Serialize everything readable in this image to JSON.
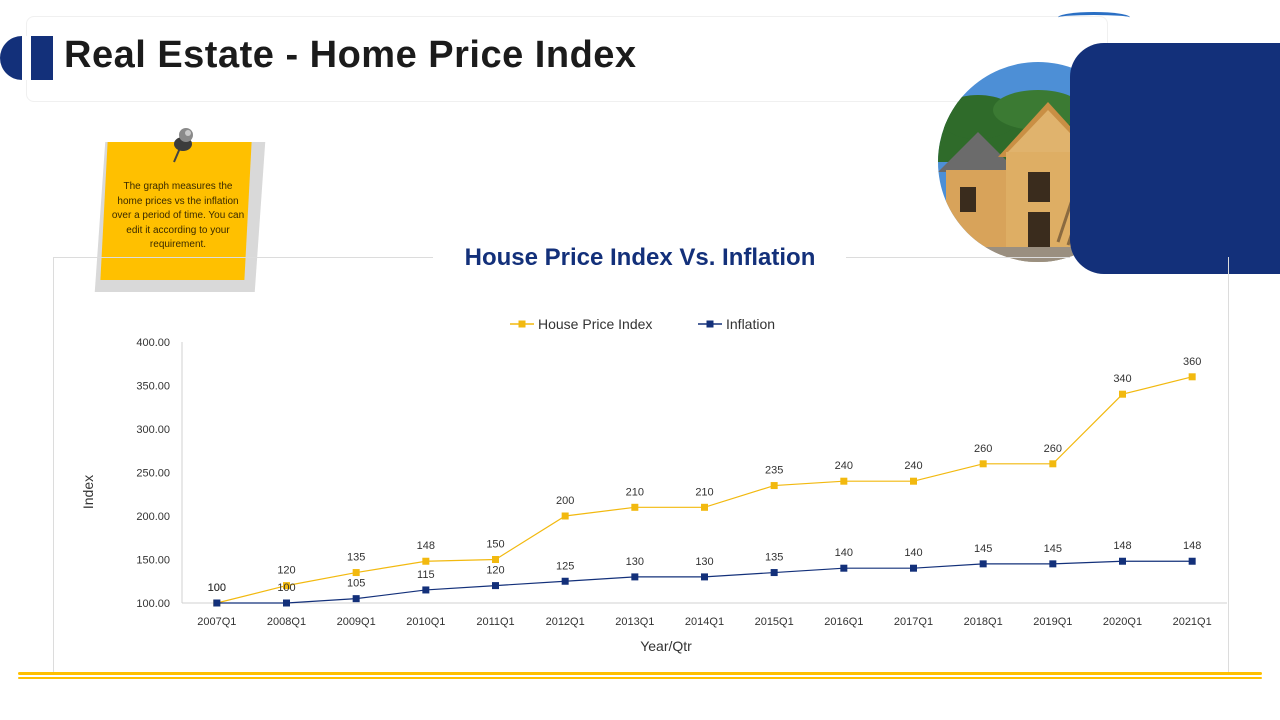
{
  "header": {
    "title": "Real Estate - Home Price Index"
  },
  "note": {
    "text": "The graph measures the home prices vs the inflation over a period of time. You can edit it according to your requirement."
  },
  "colors": {
    "navy": "#13307a",
    "accent": "#ffc000",
    "hpi_series": "#f2b90f",
    "inflation_series": "#13307a"
  },
  "chart_data": {
    "type": "line",
    "title": "House Price Index Vs. Inflation",
    "xlabel": "Year/Qtr",
    "ylabel": "Index",
    "categories": [
      "2007Q1",
      "2008Q1",
      "2009Q1",
      "2010Q1",
      "2011Q1",
      "2012Q1",
      "2013Q1",
      "2014Q1",
      "2015Q1",
      "2016Q1",
      "2017Q1",
      "2018Q1",
      "2019Q1",
      "2020Q1",
      "2021Q1"
    ],
    "ylim": [
      100,
      400
    ],
    "yticks": [
      "100.00",
      "150.00",
      "200.00",
      "250.00",
      "300.00",
      "350.00",
      "400.00"
    ],
    "legend_position": "top",
    "grid": false,
    "series": [
      {
        "name": "House Price Index",
        "color": "#f2b90f",
        "values": [
          100,
          120,
          135,
          148,
          150,
          200,
          210,
          210,
          235,
          240,
          240,
          260,
          260,
          340,
          360
        ]
      },
      {
        "name": "Inflation",
        "color": "#13307a",
        "values": [
          100,
          100,
          105,
          115,
          120,
          125,
          130,
          130,
          135,
          140,
          140,
          145,
          145,
          148,
          148
        ]
      }
    ]
  }
}
